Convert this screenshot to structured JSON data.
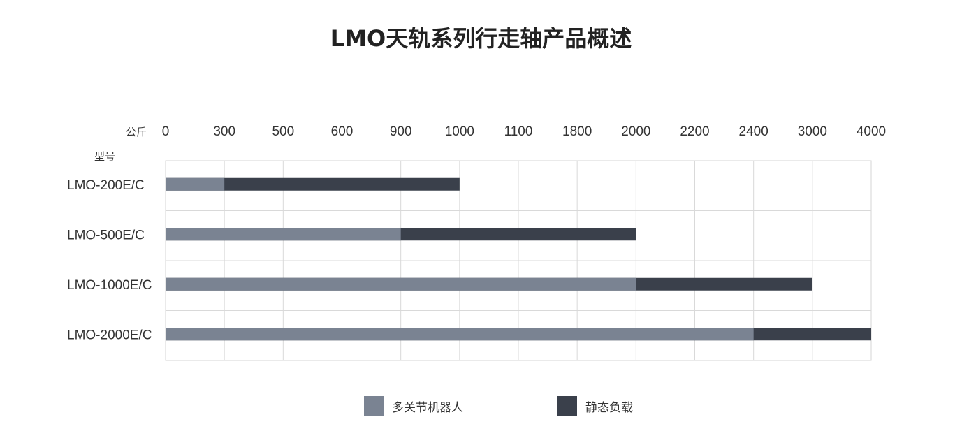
{
  "chart_data": {
    "type": "bar",
    "orientation": "horizontal",
    "stacked": true,
    "title": "LMO天轨系列行走轴产品概述",
    "x_unit_label": "公斤",
    "y_axis_label": "型号",
    "x_tick_labels": [
      "0",
      "300",
      "500",
      "600",
      "900",
      "1000",
      "1100",
      "1800",
      "2000",
      "2200",
      "2400",
      "3000",
      "4000"
    ],
    "categories": [
      "LMO-200E/C",
      "LMO-500E/C",
      "LMO-1000E/C",
      "LMO-2000E/C"
    ],
    "series": [
      {
        "name": "多关节机器人",
        "color": "#7a8392",
        "values": [
          300,
          900,
          2000,
          2400
        ],
        "total_at": [
          300,
          900,
          2000,
          2400
        ]
      },
      {
        "name": "静态负载",
        "color": "#3a404b",
        "values": [
          1000,
          2000,
          3000,
          4000
        ],
        "total_at": [
          1000,
          2000,
          3000,
          4000
        ]
      }
    ],
    "grid": true,
    "legend_position": "bottom-center",
    "axis_scale": "categorical-ticks (equal spacing between listed tick values)"
  },
  "legend": {
    "items": [
      {
        "label": "多关节机器人",
        "color": "#7a8392"
      },
      {
        "label": "静态负载",
        "color": "#3a404b"
      }
    ]
  }
}
